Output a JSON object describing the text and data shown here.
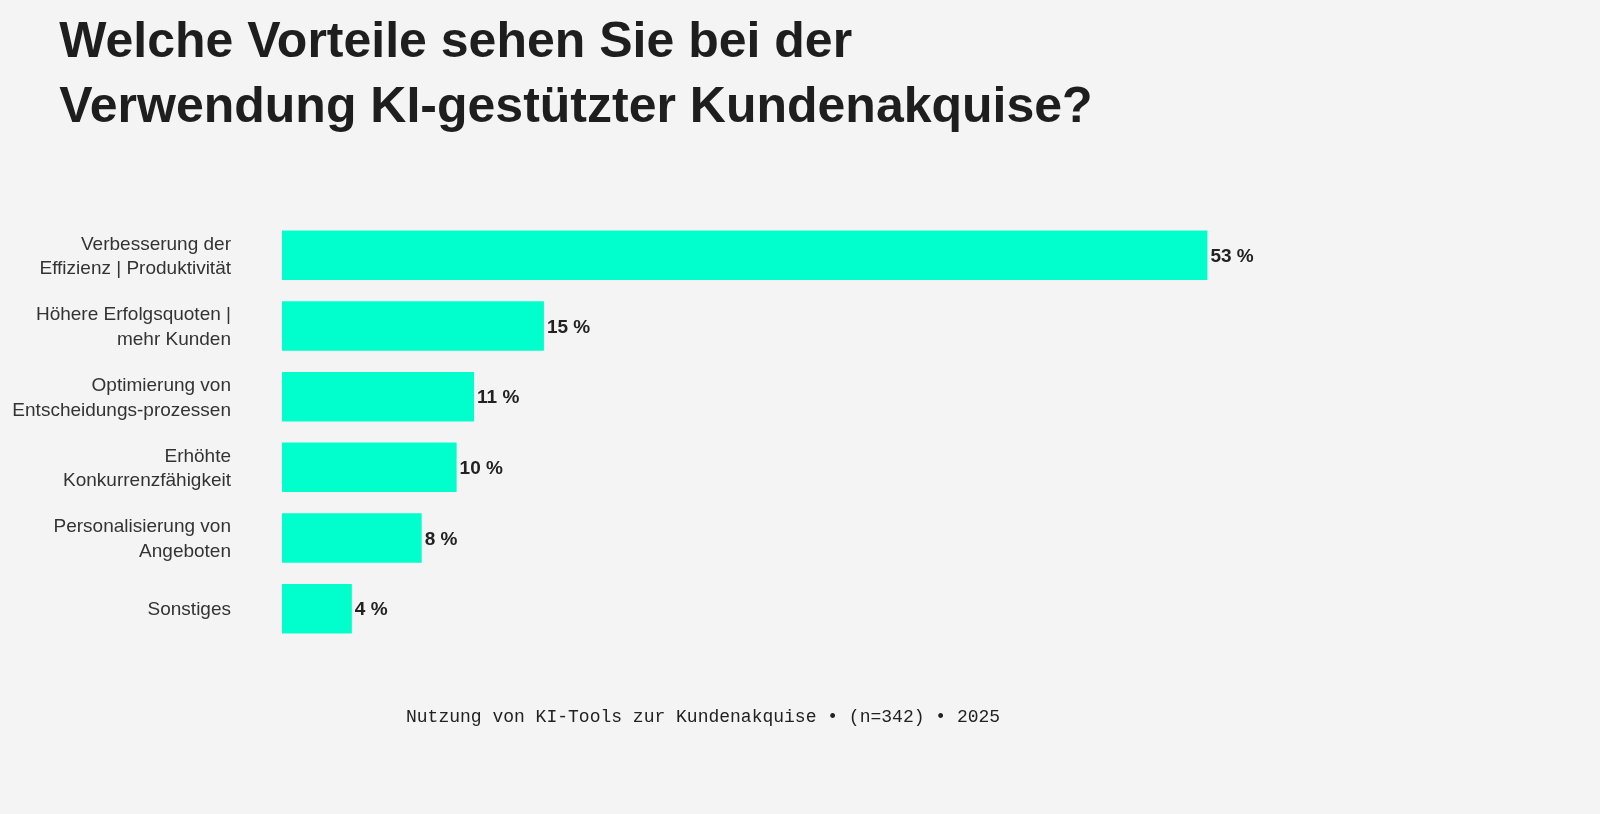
{
  "chart_data": {
    "type": "bar",
    "orientation": "horizontal",
    "title": "Welche Vorteile sehen Sie bei der\nVerwendung KI-gestützter Kundenakquise?",
    "categories": [
      "Verbesserung der\nEffizienz | Produktivität",
      "Höhere Erfolgsquoten |\nmehr Kunden",
      "Optimierung von\nEntscheidungs-prozessen",
      "Erhöhte\nKonkurrenzfähigkeit",
      "Personalisierung von\nAngeboten",
      "Sonstiges"
    ],
    "values": [
      53,
      15,
      11,
      10,
      8,
      4
    ],
    "value_labels": [
      "53 %",
      "15 %",
      "11 %",
      "10 %",
      "8 %",
      "4 %"
    ],
    "color": "#00ffcc",
    "legend": false,
    "annotations": [
      "Nutzung von KI-Tools zur Kundenakquise • (n=342) • 2025"
    ]
  }
}
